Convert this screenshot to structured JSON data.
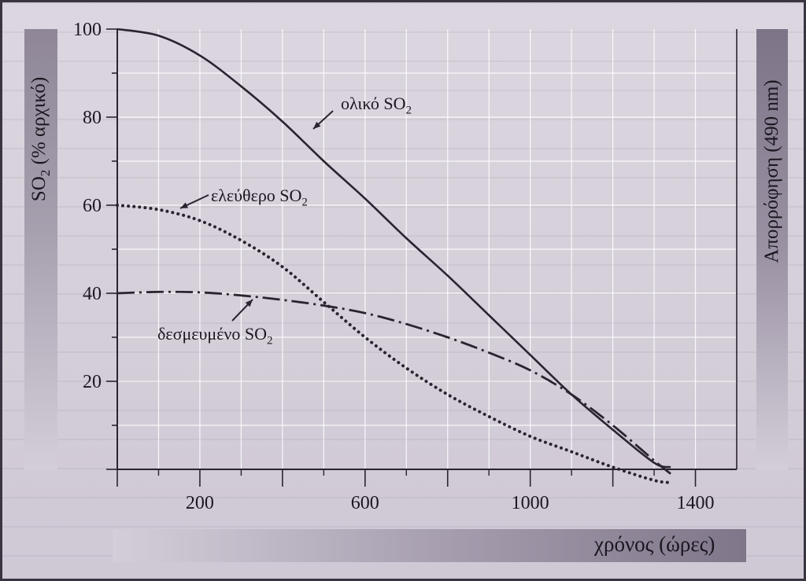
{
  "chart_data": {
    "type": "line",
    "xlabel": "χρόνος (ώρες)",
    "ylabel": "SO",
    "ylabel_sub": "2",
    "ylabel_tail": " (% αρχικό)",
    "y2label": "Απορρόφηση (490 nm)",
    "xlim": [
      0,
      1500
    ],
    "ylim": [
      0,
      100
    ],
    "x_ticks": [
      200,
      600,
      1000,
      1400
    ],
    "y_ticks": [
      100,
      80,
      60,
      40,
      20
    ],
    "grid": true,
    "series": [
      {
        "label": "ολικό SO",
        "label_sub": "2",
        "style": "solid",
        "x": [
          0,
          100,
          200,
          300,
          400,
          500,
          600,
          700,
          800,
          900,
          1000,
          1100,
          1200,
          1300,
          1340
        ],
        "y": [
          100,
          98.5,
          94,
          87,
          79,
          70,
          61.5,
          52.5,
          44,
          35,
          26,
          17,
          9,
          1.5,
          0.5
        ]
      },
      {
        "label": "ελεύθερο SO",
        "label_sub": "2",
        "style": "dotted",
        "x": [
          0,
          100,
          200,
          300,
          400,
          500,
          600,
          700,
          800,
          900,
          1000,
          1100,
          1200,
          1300,
          1340
        ],
        "y": [
          60,
          59,
          56.5,
          52,
          46,
          38,
          30,
          23,
          17,
          12,
          7.5,
          4,
          0.5,
          -2.5,
          -3
        ]
      },
      {
        "label": "δεσμευμένο SO",
        "label_sub": "2",
        "style": "dashdot",
        "x": [
          0,
          100,
          200,
          300,
          400,
          500,
          600,
          700,
          800,
          900,
          1000,
          1100,
          1200,
          1300,
          1340
        ],
        "y": [
          40,
          40.3,
          40.2,
          39.5,
          38.5,
          37.2,
          35.5,
          33,
          30,
          26.5,
          22.5,
          17,
          10,
          2,
          -1
        ]
      }
    ]
  }
}
